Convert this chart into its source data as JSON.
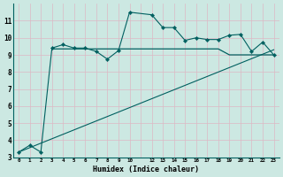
{
  "xlabel": "Humidex (Indice chaleur)",
  "bg_color": "#cce8e2",
  "grid_color": "#ddb8c4",
  "line_color": "#006060",
  "ylim": [
    3,
    12
  ],
  "xlim": [
    -0.5,
    23.5
  ],
  "yticks": [
    3,
    4,
    5,
    6,
    7,
    8,
    9,
    10,
    11
  ],
  "x_tick_positions": [
    0,
    1,
    2,
    3,
    4,
    5,
    6,
    7,
    8,
    9,
    10,
    12,
    13,
    14,
    15,
    16,
    17,
    18,
    19,
    20,
    21,
    22,
    23
  ],
  "x_tick_labels": [
    "0",
    "1",
    "2",
    "3",
    "4",
    "5",
    "6",
    "7",
    "8",
    "9",
    "10",
    "12",
    "13",
    "14",
    "15",
    "16",
    "17",
    "18",
    "19",
    "20",
    "21",
    "22",
    "23"
  ],
  "series1_x": [
    0,
    1,
    2,
    3,
    4,
    5,
    6,
    7,
    8,
    9,
    10,
    12,
    13,
    14,
    15,
    16,
    17,
    18,
    19,
    20,
    21,
    22,
    23
  ],
  "series1_y": [
    3.3,
    3.7,
    3.3,
    9.4,
    9.6,
    9.4,
    9.4,
    9.2,
    8.75,
    9.25,
    11.5,
    11.35,
    10.6,
    10.6,
    9.85,
    10.0,
    9.9,
    9.9,
    10.15,
    10.2,
    9.2,
    9.75,
    9.0
  ],
  "series2_x": [
    3,
    4,
    5,
    6,
    7,
    8,
    9,
    10,
    12,
    13,
    14,
    15,
    16,
    17,
    18,
    19,
    20,
    21,
    22,
    23
  ],
  "series2_y": [
    9.35,
    9.35,
    9.35,
    9.35,
    9.35,
    9.35,
    9.35,
    9.35,
    9.35,
    9.35,
    9.35,
    9.35,
    9.35,
    9.35,
    9.35,
    9.0,
    9.0,
    9.0,
    9.0,
    9.0
  ],
  "series3_x": [
    0,
    23
  ],
  "series3_y": [
    3.3,
    9.3
  ]
}
